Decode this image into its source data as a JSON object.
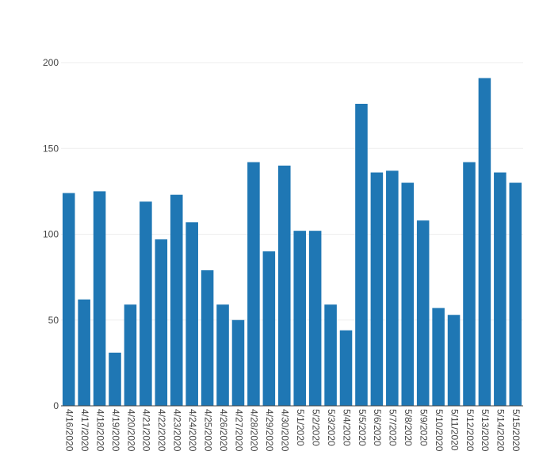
{
  "chart_data": {
    "type": "bar",
    "title": "",
    "xlabel": "",
    "ylabel": "",
    "categories": [
      "4/16/2020",
      "4/17/2020",
      "4/18/2020",
      "4/19/2020",
      "4/20/2020",
      "4/21/2020",
      "4/22/2020",
      "4/23/2020",
      "4/24/2020",
      "4/25/2020",
      "4/26/2020",
      "4/27/2020",
      "4/28/2020",
      "4/29/2020",
      "4/30/2020",
      "5/1/2020",
      "5/2/2020",
      "5/3/2020",
      "5/4/2020",
      "5/5/2020",
      "5/6/2020",
      "5/7/2020",
      "5/8/2020",
      "5/9/2020",
      "5/10/2020",
      "5/11/2020",
      "5/12/2020",
      "5/13/2020",
      "5/14/2020",
      "5/15/2020"
    ],
    "values": [
      124,
      62,
      125,
      31,
      59,
      119,
      97,
      123,
      107,
      79,
      59,
      50,
      142,
      90,
      140,
      102,
      102,
      59,
      44,
      176,
      136,
      137,
      130,
      108,
      57,
      53,
      142,
      191,
      136,
      130
    ],
    "ylim": [
      0,
      200
    ],
    "yticks": [
      0,
      50,
      100,
      150,
      200
    ],
    "grid": true,
    "bar_color": "#1f77b4"
  }
}
